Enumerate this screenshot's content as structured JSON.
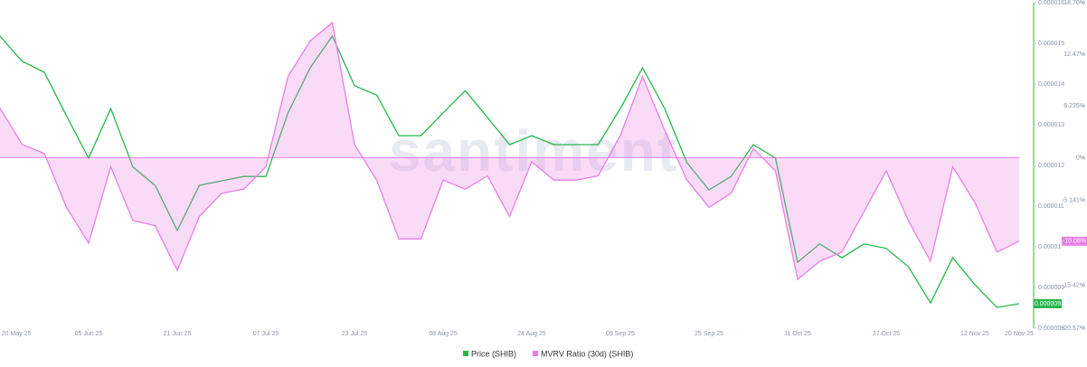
{
  "chart_data": {
    "type": "line",
    "watermark": "santiment",
    "x": [
      "2025-05-20",
      "2025-05-24",
      "2025-05-28",
      "2025-06-01",
      "2025-06-05",
      "2025-06-09",
      "2025-06-13",
      "2025-06-17",
      "2025-06-21",
      "2025-06-25",
      "2025-06-29",
      "2025-07-03",
      "2025-07-07",
      "2025-07-11",
      "2025-07-15",
      "2025-07-19",
      "2025-07-23",
      "2025-07-27",
      "2025-07-31",
      "2025-08-04",
      "2025-08-08",
      "2025-08-12",
      "2025-08-16",
      "2025-08-20",
      "2025-08-24",
      "2025-08-28",
      "2025-09-01",
      "2025-09-05",
      "2025-09-09",
      "2025-09-13",
      "2025-09-17",
      "2025-09-21",
      "2025-09-25",
      "2025-09-29",
      "2025-10-03",
      "2025-10-07",
      "2025-10-11",
      "2025-10-15",
      "2025-10-19",
      "2025-10-23",
      "2025-10-27",
      "2025-10-31",
      "2025-11-04",
      "2025-11-08",
      "2025-11-12",
      "2025-11-16",
      "2025-11-20"
    ],
    "xlim": [
      "2025-05-20",
      "2025-11-20"
    ],
    "xticks": [
      {
        "value": "2025-05-20",
        "label": "20 May 25"
      },
      {
        "value": "2025-06-05",
        "label": "05 Jun 25"
      },
      {
        "value": "2025-06-21",
        "label": "21 Jun 25"
      },
      {
        "value": "2025-07-07",
        "label": "07 Jul 25"
      },
      {
        "value": "2025-07-23",
        "label": "23 Jul 25"
      },
      {
        "value": "2025-08-08",
        "label": "08 Aug 25"
      },
      {
        "value": "2025-08-24",
        "label": "24 Aug 25"
      },
      {
        "value": "2025-09-09",
        "label": "09 Sep 25"
      },
      {
        "value": "2025-09-25",
        "label": "25 Sep 25"
      },
      {
        "value": "2025-10-11",
        "label": "11 Oct 25"
      },
      {
        "value": "2025-10-27",
        "label": "27 Oct 25"
      },
      {
        "value": "2025-11-12",
        "label": "12 Nov 25"
      },
      {
        "value": "2025-11-20",
        "label": "20 Nov 25"
      }
    ],
    "ylim": [
      8e-06,
      1.6e-05
    ],
    "yticks": [
      1.6e-05,
      1.5e-05,
      1.4e-05,
      1.3e-05,
      1.2e-05,
      1.1e-05,
      1e-05,
      9e-06,
      8e-06
    ],
    "y2lim": [
      -20.57,
      18.7
    ],
    "y2ticks": [
      {
        "value": 18.7,
        "label": "18.70%"
      },
      {
        "value": 12.47,
        "label": "12.47%"
      },
      {
        "value": 6.235,
        "label": "6.235%"
      },
      {
        "value": 0,
        "label": "0%"
      },
      {
        "value": -5.141,
        "label": "-5.141%"
      },
      {
        "value": -15.42,
        "label": "-15.42%"
      },
      {
        "value": -20.57,
        "label": "-20.57%"
      }
    ],
    "series": [
      {
        "name": "Price (SHIB)",
        "color": "#26b84a",
        "current_label": "0.000009",
        "values": [
          1.518e-05,
          1.456e-05,
          1.429e-05,
          1.322e-05,
          1.218e-05,
          1.34e-05,
          1.196e-05,
          1.151e-05,
          1.04e-05,
          1.151e-05,
          1.162e-05,
          1.173e-05,
          1.173e-05,
          1.329e-05,
          1.44e-05,
          1.518e-05,
          1.396e-05,
          1.373e-05,
          1.273e-05,
          1.273e-05,
          1.329e-05,
          1.384e-05,
          1.318e-05,
          1.251e-05,
          1.273e-05,
          1.251e-05,
          1.251e-05,
          1.251e-05,
          1.34e-05,
          1.44e-05,
          1.34e-05,
          1.207e-05,
          1.14e-05,
          1.173e-05,
          1.251e-05,
          1.218e-05,
          9.62e-06,
          1.007e-05,
          9.73e-06,
          1.007e-05,
          9.96e-06,
          9.51e-06,
          8.62e-06,
          9.73e-06,
          9.07e-06,
          8.51e-06,
          8.6e-06
        ]
      },
      {
        "name": "MVRV Ratio (30d) (SHIB)",
        "color": "#e97ee6",
        "axis": "y2",
        "current_label": "-10.08%",
        "values": [
          6.0,
          1.6,
          0.5,
          -6.0,
          -10.3,
          -1.1,
          -7.6,
          -8.2,
          -13.6,
          -7.1,
          -4.3,
          -3.8,
          -1.1,
          9.8,
          14.1,
          16.3,
          1.6,
          -2.7,
          -9.8,
          -9.8,
          -2.7,
          -3.8,
          -2.2,
          -7.1,
          -0.5,
          -2.7,
          -2.7,
          -2.2,
          2.7,
          9.8,
          3.3,
          -2.7,
          -6.0,
          -4.3,
          1.1,
          -1.6,
          -14.7,
          -12.5,
          -11.4,
          -6.5,
          -1.6,
          -7.6,
          -12.5,
          -1.1,
          -5.4,
          -11.4,
          -10.08
        ]
      }
    ]
  }
}
